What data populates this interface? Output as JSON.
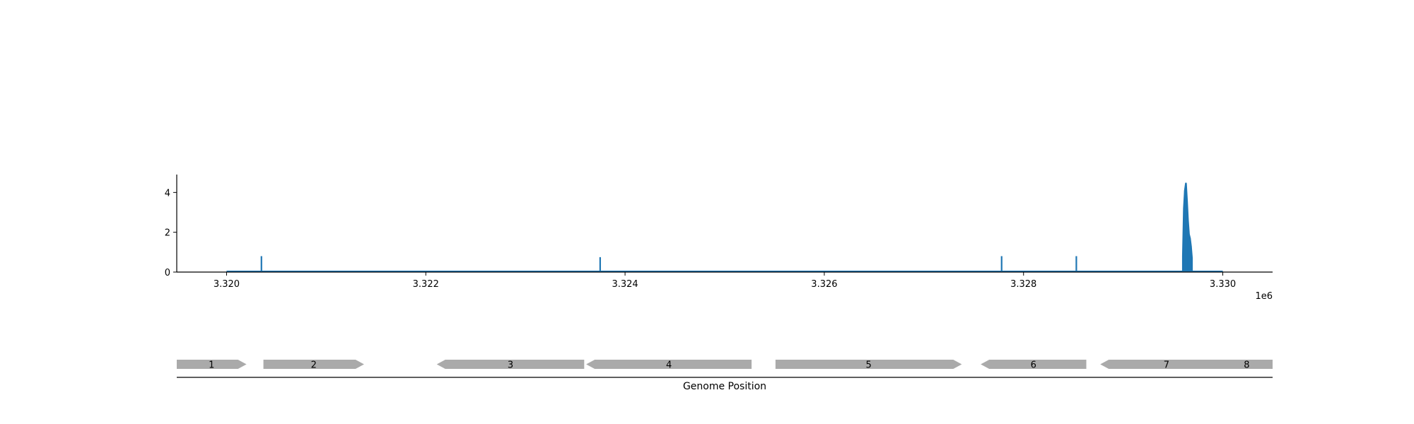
{
  "chart_data": [
    {
      "type": "line",
      "title": "",
      "xlabel": "",
      "ylabel": "",
      "xlim": [
        3319500,
        3330500
      ],
      "ylim": [
        0,
        4.9
      ],
      "x_offset_label": "1e6",
      "xticks": [
        3320000,
        3322000,
        3324000,
        3326000,
        3328000,
        3330000
      ],
      "xtick_labels": [
        "3.320",
        "3.322",
        "3.324",
        "3.326",
        "3.328",
        "3.330"
      ],
      "yticks": [
        0,
        2,
        4
      ],
      "ytick_labels": [
        "0",
        "2",
        "4"
      ],
      "grid": false,
      "color": "#1f77b4",
      "baseline_range": [
        3320000,
        3330000
      ],
      "spikes": [
        {
          "x": 3320350,
          "y": 0.8
        },
        {
          "x": 3323750,
          "y": 0.75
        },
        {
          "x": 3327780,
          "y": 0.8
        },
        {
          "x": 3328530,
          "y": 0.8
        }
      ],
      "peak": {
        "x": [
          3329600,
          3329610,
          3329620,
          3329630,
          3329640,
          3329650,
          3329660,
          3329670,
          3329680,
          3329690
        ],
        "y": [
          0.8,
          3.2,
          4.1,
          4.45,
          3.6,
          2.6,
          1.9,
          1.7,
          1.3,
          0.7
        ]
      }
    },
    {
      "type": "gene-track",
      "xlabel": "Genome Position",
      "xlim": [
        3319500,
        3330500
      ],
      "genes": [
        {
          "label": "1",
          "start": 3319500,
          "end": 3320200,
          "strand": "+"
        },
        {
          "label": "2",
          "start": 3320370,
          "end": 3321380,
          "strand": "+"
        },
        {
          "label": "3",
          "start": 3322110,
          "end": 3323590,
          "strand": "-"
        },
        {
          "label": "4",
          "start": 3323610,
          "end": 3325270,
          "strand": "-"
        },
        {
          "label": "5",
          "start": 3325510,
          "end": 3327380,
          "strand": "+"
        },
        {
          "label": "6",
          "start": 3327570,
          "end": 3328630,
          "strand": "-"
        },
        {
          "label": "7",
          "start": 3328770,
          "end": 3330100,
          "strand": "-"
        },
        {
          "label": "8",
          "start": 3329980,
          "end": 3330500,
          "strand": "-"
        }
      ],
      "gene_color": "#aaaaaa"
    }
  ]
}
